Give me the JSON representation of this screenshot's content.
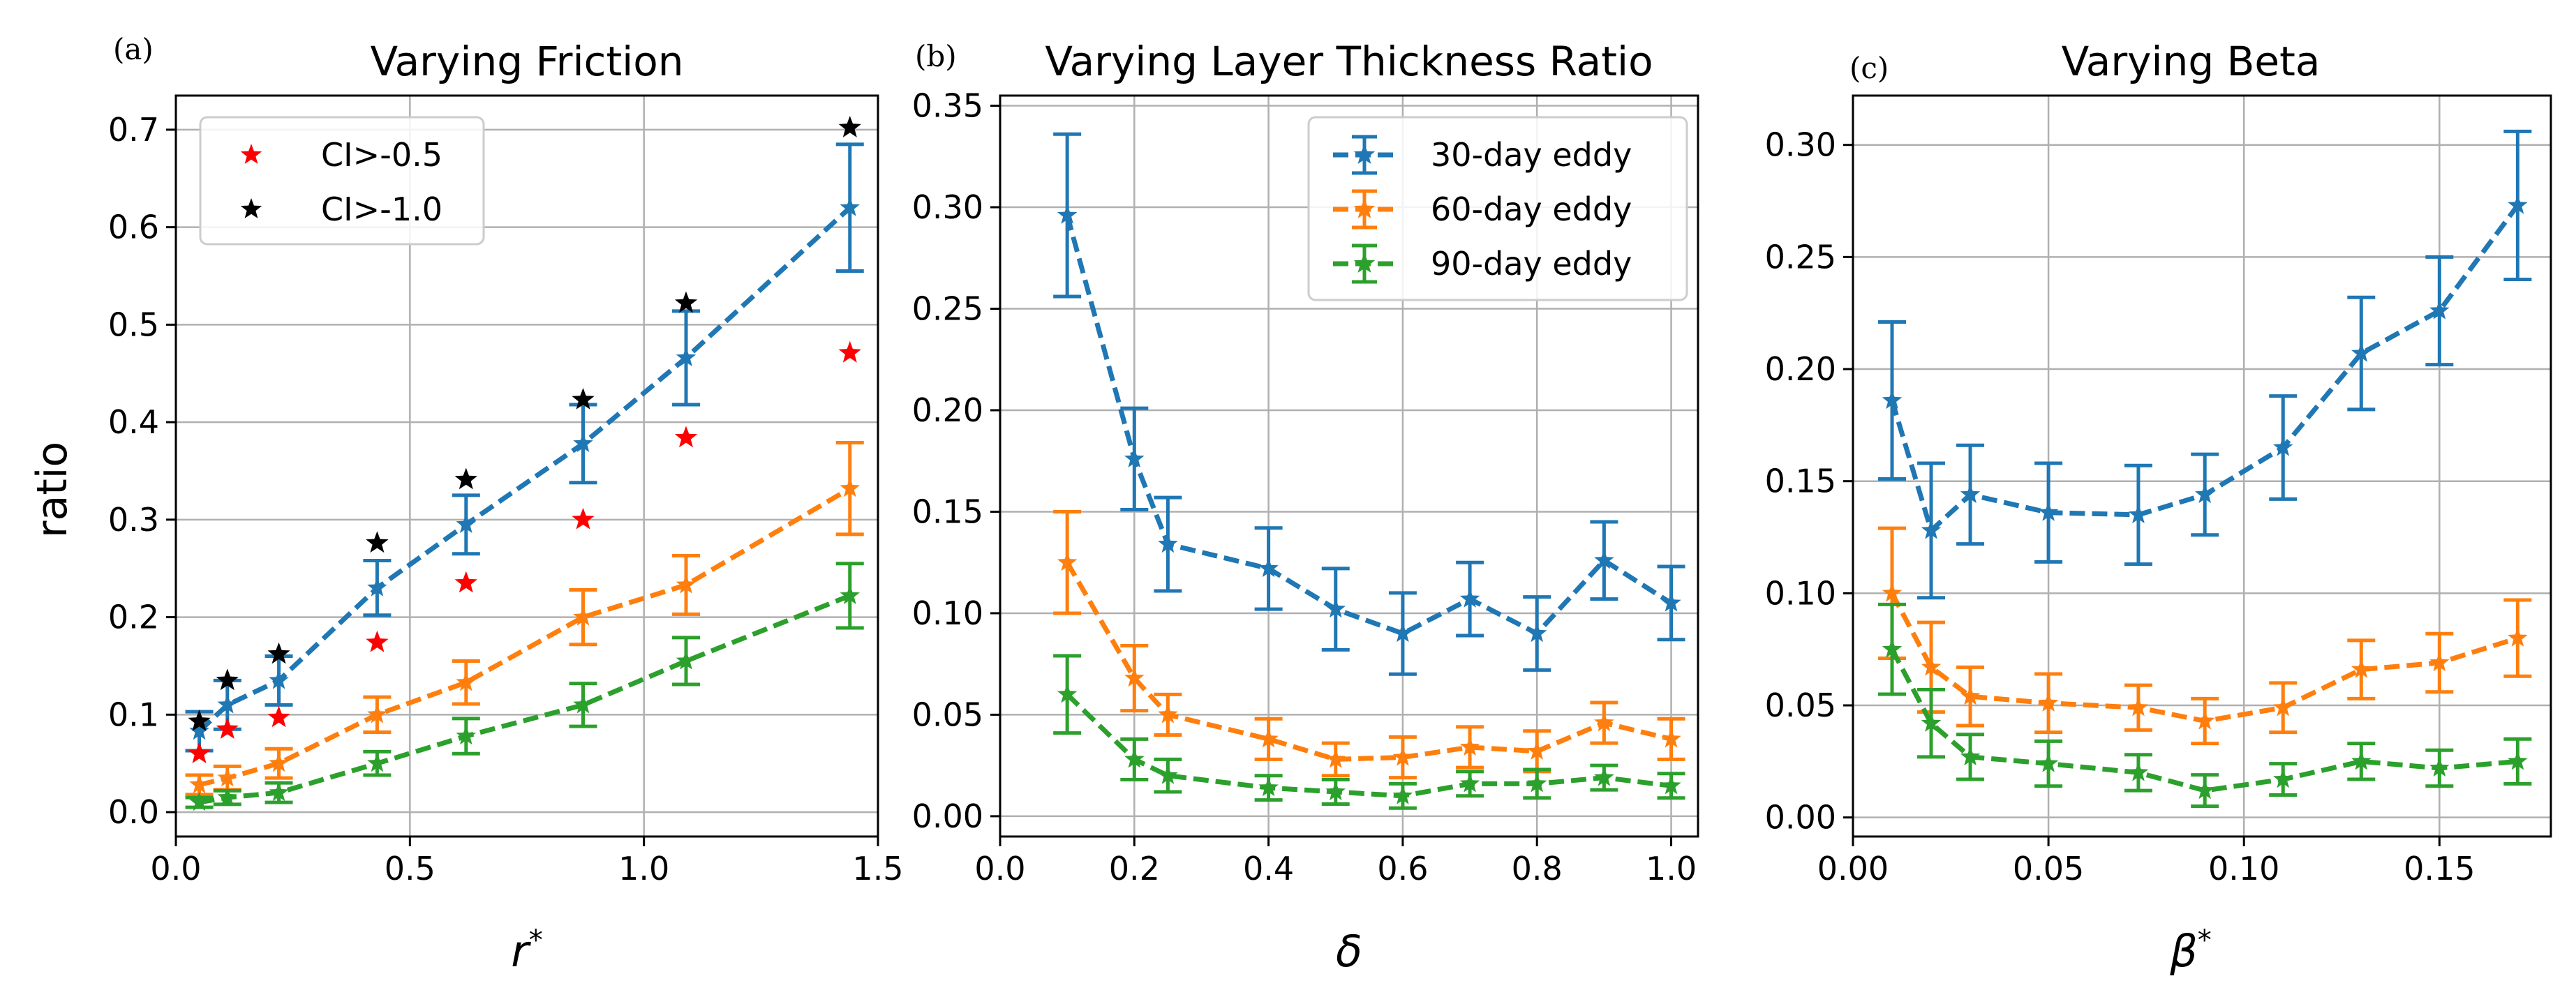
{
  "chart_data": [
    {
      "type": "scatter",
      "panel_label": "(a)",
      "title": "Varying Friction",
      "xlabel": "r*",
      "ylabel": "ratio",
      "xlim": [
        0.0,
        1.5
      ],
      "ylim": [
        -0.025,
        0.735
      ],
      "xticks": [
        0.0,
        0.5,
        1.0,
        1.5
      ],
      "xtick_labels": [
        "0.0",
        "0.5",
        "1.0",
        "1.5"
      ],
      "yticks": [
        0.0,
        0.1,
        0.2,
        0.3,
        0.4,
        0.5,
        0.6,
        0.7
      ],
      "ytick_labels": [
        "0.0",
        "0.1",
        "0.2",
        "0.3",
        "0.4",
        "0.5",
        "0.6",
        "0.7"
      ],
      "grid": true,
      "legend": {
        "position": "top-left",
        "entries": [
          "CI>-0.5",
          "CI>-1.0"
        ]
      },
      "series": [
        {
          "name": "30-day eddy",
          "color": "#1f77b4",
          "style": "dashed-errorbar",
          "x": [
            0.05,
            0.11,
            0.22,
            0.43,
            0.62,
            0.87,
            1.09,
            1.44
          ],
          "y": [
            0.083,
            0.11,
            0.135,
            0.23,
            0.295,
            0.378,
            0.466,
            0.62
          ],
          "err": [
            0.02,
            0.025,
            0.025,
            0.028,
            0.03,
            0.04,
            0.048,
            0.065
          ]
        },
        {
          "name": "60-day eddy",
          "color": "#ff7f0e",
          "style": "dashed-errorbar",
          "x": [
            0.05,
            0.11,
            0.22,
            0.43,
            0.62,
            0.87,
            1.09,
            1.44
          ],
          "y": [
            0.028,
            0.035,
            0.05,
            0.1,
            0.133,
            0.2,
            0.233,
            0.332
          ],
          "err": [
            0.01,
            0.012,
            0.015,
            0.018,
            0.022,
            0.028,
            0.03,
            0.047
          ]
        },
        {
          "name": "90-day eddy",
          "color": "#2ca02c",
          "style": "dashed-errorbar",
          "x": [
            0.05,
            0.11,
            0.22,
            0.43,
            0.62,
            0.87,
            1.09,
            1.44
          ],
          "y": [
            0.01,
            0.015,
            0.02,
            0.05,
            0.078,
            0.11,
            0.155,
            0.222
          ],
          "err": [
            0.005,
            0.007,
            0.01,
            0.012,
            0.018,
            0.022,
            0.024,
            0.033
          ]
        },
        {
          "name": "CI>-0.5",
          "color": "#ff0000",
          "style": "star",
          "x": [
            0.05,
            0.11,
            0.22,
            0.43,
            0.62,
            0.87,
            1.09,
            1.44
          ],
          "y": [
            0.06,
            0.085,
            0.097,
            0.174,
            0.235,
            0.3,
            0.384,
            0.471
          ]
        },
        {
          "name": "CI>-1.0",
          "color": "#000000",
          "style": "star",
          "x": [
            0.05,
            0.11,
            0.22,
            0.43,
            0.62,
            0.87,
            1.09,
            1.44
          ],
          "y": [
            0.093,
            0.135,
            0.162,
            0.276,
            0.341,
            0.423,
            0.522,
            0.702
          ]
        }
      ]
    },
    {
      "type": "line",
      "panel_label": "(b)",
      "title": "Varying Layer Thickness Ratio",
      "xlabel": "δ",
      "ylabel": "",
      "xlim": [
        0.0,
        1.04
      ],
      "ylim": [
        -0.01,
        0.355
      ],
      "xticks": [
        0.0,
        0.2,
        0.4,
        0.6,
        0.8,
        1.0
      ],
      "xtick_labels": [
        "0.0",
        "0.2",
        "0.4",
        "0.6",
        "0.8",
        "1.0"
      ],
      "yticks": [
        0.0,
        0.05,
        0.1,
        0.15,
        0.2,
        0.25,
        0.3,
        0.35
      ],
      "ytick_labels": [
        "0.00",
        "0.05",
        "0.10",
        "0.15",
        "0.20",
        "0.25",
        "0.30",
        "0.35"
      ],
      "grid": true,
      "legend": {
        "position": "top-right",
        "entries": [
          "30-day eddy",
          "60-day eddy",
          "90-day eddy"
        ]
      },
      "series": [
        {
          "name": "30-day eddy",
          "color": "#1f77b4",
          "style": "dashed-errorbar",
          "x": [
            0.1,
            0.2,
            0.25,
            0.4,
            0.5,
            0.6,
            0.7,
            0.8,
            0.9,
            1.0
          ],
          "y": [
            0.296,
            0.176,
            0.134,
            0.122,
            0.102,
            0.09,
            0.107,
            0.09,
            0.126,
            0.105
          ],
          "err": [
            0.04,
            0.025,
            0.023,
            0.02,
            0.02,
            0.02,
            0.018,
            0.018,
            0.019,
            0.018
          ]
        },
        {
          "name": "60-day eddy",
          "color": "#ff7f0e",
          "style": "dashed-errorbar",
          "x": [
            0.1,
            0.2,
            0.25,
            0.4,
            0.5,
            0.6,
            0.7,
            0.8,
            0.9,
            1.0
          ],
          "y": [
            0.125,
            0.068,
            0.05,
            0.038,
            0.028,
            0.029,
            0.034,
            0.032,
            0.046,
            0.038
          ],
          "err": [
            0.025,
            0.016,
            0.01,
            0.01,
            0.008,
            0.01,
            0.01,
            0.01,
            0.01,
            0.01
          ]
        },
        {
          "name": "90-day eddy",
          "color": "#2ca02c",
          "style": "dashed-errorbar",
          "x": [
            0.1,
            0.2,
            0.25,
            0.4,
            0.5,
            0.6,
            0.7,
            0.8,
            0.9,
            1.0
          ],
          "y": [
            0.06,
            0.028,
            0.02,
            0.014,
            0.012,
            0.01,
            0.016,
            0.016,
            0.019,
            0.015
          ],
          "err": [
            0.019,
            0.01,
            0.008,
            0.006,
            0.006,
            0.006,
            0.006,
            0.007,
            0.006,
            0.006
          ]
        }
      ]
    },
    {
      "type": "line",
      "panel_label": "(c)",
      "title": "Varying Beta",
      "xlabel": "β*",
      "ylabel": "",
      "xlim": [
        0.0,
        0.1785
      ],
      "ylim": [
        -0.0085,
        0.322
      ],
      "xticks": [
        0.0,
        0.05,
        0.1,
        0.15
      ],
      "xtick_labels": [
        "0.00",
        "0.05",
        "0.10",
        "0.15"
      ],
      "yticks": [
        0.0,
        0.05,
        0.1,
        0.15,
        0.2,
        0.25,
        0.3
      ],
      "ytick_labels": [
        "0.00",
        "0.05",
        "0.10",
        "0.15",
        "0.20",
        "0.25",
        "0.30"
      ],
      "grid": true,
      "legend": null,
      "series": [
        {
          "name": "30-day eddy",
          "color": "#1f77b4",
          "style": "dashed-errorbar",
          "x": [
            0.01,
            0.02,
            0.03,
            0.05,
            0.073,
            0.09,
            0.11,
            0.13,
            0.15,
            0.17
          ],
          "y": [
            0.186,
            0.128,
            0.144,
            0.136,
            0.135,
            0.144,
            0.165,
            0.207,
            0.226,
            0.273
          ],
          "err": [
            0.035,
            0.03,
            0.022,
            0.022,
            0.022,
            0.018,
            0.023,
            0.025,
            0.024,
            0.033
          ]
        },
        {
          "name": "60-day eddy",
          "color": "#ff7f0e",
          "style": "dashed-errorbar",
          "x": [
            0.01,
            0.02,
            0.03,
            0.05,
            0.073,
            0.09,
            0.11,
            0.13,
            0.15,
            0.17
          ],
          "y": [
            0.1,
            0.067,
            0.054,
            0.051,
            0.049,
            0.043,
            0.049,
            0.066,
            0.069,
            0.08
          ],
          "err": [
            0.029,
            0.02,
            0.013,
            0.013,
            0.01,
            0.01,
            0.011,
            0.013,
            0.013,
            0.017
          ]
        },
        {
          "name": "90-day eddy",
          "color": "#2ca02c",
          "style": "dashed-errorbar",
          "x": [
            0.01,
            0.02,
            0.03,
            0.05,
            0.073,
            0.09,
            0.11,
            0.13,
            0.15,
            0.17
          ],
          "y": [
            0.075,
            0.042,
            0.027,
            0.024,
            0.02,
            0.012,
            0.017,
            0.025,
            0.022,
            0.025
          ],
          "err": [
            0.02,
            0.015,
            0.01,
            0.01,
            0.008,
            0.007,
            0.007,
            0.008,
            0.008,
            0.01
          ]
        }
      ]
    }
  ]
}
